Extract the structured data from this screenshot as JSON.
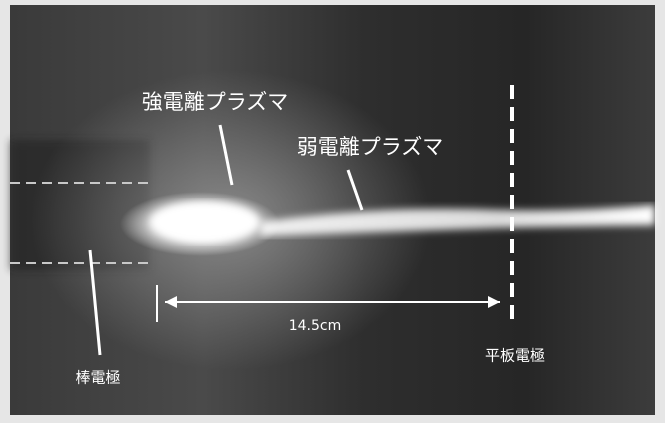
{
  "labels": {
    "strong_plasma": "強電離プラズマ",
    "weak_plasma": "弱電離プラズマ",
    "distance": "14.5cm",
    "plate_electrode": "平板電極",
    "rod_electrode": "棒電極"
  }
}
